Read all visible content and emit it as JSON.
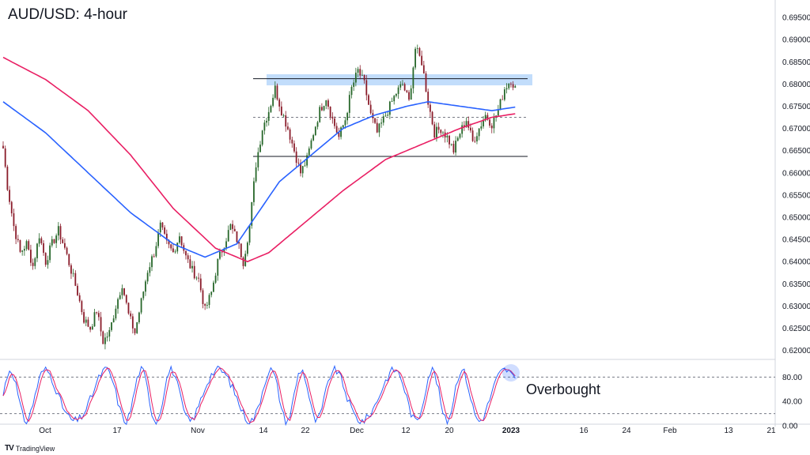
{
  "chart_data": {
    "type": "candlestick",
    "title": "AUD/USD: 4-hour",
    "y_ticks": [
      "0.69500",
      "0.69000",
      "0.68500",
      "0.68000",
      "0.67500",
      "0.67000",
      "0.66500",
      "0.66000",
      "0.65500",
      "0.65000",
      "0.64500",
      "0.64000",
      "0.63500",
      "0.63000",
      "0.62500",
      "0.62000"
    ],
    "ylim": [
      0.6185,
      0.6975
    ],
    "x_ticks": [
      "Oct",
      "17",
      "Nov",
      "14",
      "22",
      "Dec",
      "12",
      "20",
      "2023",
      "16",
      "24",
      "Feb",
      "13",
      "21"
    ],
    "x_ticks_bold": [
      "2023"
    ],
    "price_series_approx": [
      [
        0,
        0.6655
      ],
      [
        2,
        0.657
      ],
      [
        5,
        0.648
      ],
      [
        8,
        0.642
      ],
      [
        11,
        0.644
      ],
      [
        14,
        0.639
      ],
      [
        17,
        0.646
      ],
      [
        20,
        0.64
      ],
      [
        23,
        0.644
      ],
      [
        26,
        0.647
      ],
      [
        29,
        0.643
      ],
      [
        32,
        0.638
      ],
      [
        35,
        0.633
      ],
      [
        38,
        0.627
      ],
      [
        41,
        0.625
      ],
      [
        44,
        0.629
      ],
      [
        47,
        0.622
      ],
      [
        50,
        0.624
      ],
      [
        53,
        0.63
      ],
      [
        56,
        0.635
      ],
      [
        59,
        0.628
      ],
      [
        62,
        0.624
      ],
      [
        65,
        0.631
      ],
      [
        68,
        0.638
      ],
      [
        71,
        0.642
      ],
      [
        74,
        0.648
      ],
      [
        77,
        0.644
      ],
      [
        80,
        0.642
      ],
      [
        83,
        0.646
      ],
      [
        86,
        0.641
      ],
      [
        89,
        0.638
      ],
      [
        92,
        0.636
      ],
      [
        95,
        0.629
      ],
      [
        98,
        0.633
      ],
      [
        101,
        0.64
      ],
      [
        104,
        0.644
      ],
      [
        107,
        0.648
      ],
      [
        110,
        0.645
      ],
      [
        113,
        0.64
      ],
      [
        116,
        0.648
      ],
      [
        119,
        0.662
      ],
      [
        122,
        0.67
      ],
      [
        125,
        0.674
      ],
      [
        128,
        0.679
      ],
      [
        131,
        0.674
      ],
      [
        134,
        0.67
      ],
      [
        137,
        0.665
      ],
      [
        140,
        0.66
      ],
      [
        143,
        0.663
      ],
      [
        146,
        0.669
      ],
      [
        149,
        0.674
      ],
      [
        152,
        0.677
      ],
      [
        155,
        0.672
      ],
      [
        158,
        0.668
      ],
      [
        161,
        0.672
      ],
      [
        164,
        0.679
      ],
      [
        167,
        0.683
      ],
      [
        170,
        0.68
      ],
      [
        173,
        0.673
      ],
      [
        176,
        0.669
      ],
      [
        179,
        0.672
      ],
      [
        182,
        0.675
      ],
      [
        185,
        0.678
      ],
      [
        188,
        0.68
      ],
      [
        191,
        0.676
      ],
      [
        194,
        0.688
      ],
      [
        197,
        0.685
      ],
      [
        200,
        0.676
      ],
      [
        203,
        0.669
      ],
      [
        206,
        0.67
      ],
      [
        209,
        0.668
      ],
      [
        212,
        0.665
      ],
      [
        215,
        0.669
      ],
      [
        218,
        0.672
      ],
      [
        221,
        0.667
      ],
      [
        224,
        0.67
      ],
      [
        227,
        0.673
      ],
      [
        230,
        0.671
      ],
      [
        233,
        0.674
      ],
      [
        236,
        0.679
      ],
      [
        239,
        0.681
      ],
      [
        241,
        0.679
      ]
    ],
    "series": [
      {
        "name": "",
        "color": "#2962ff",
        "desc_type": "moving-average",
        "values_approx": [
          [
            0,
            0.676
          ],
          [
            20,
            0.669
          ],
          [
            40,
            0.66
          ],
          [
            60,
            0.651
          ],
          [
            80,
            0.644
          ],
          [
            95,
            0.641
          ],
          [
            110,
            0.644
          ],
          [
            120,
            0.651
          ],
          [
            130,
            0.658
          ],
          [
            145,
            0.664
          ],
          [
            160,
            0.67
          ],
          [
            175,
            0.673
          ],
          [
            190,
            0.675
          ],
          [
            200,
            0.676
          ],
          [
            215,
            0.675
          ],
          [
            230,
            0.674
          ],
          [
            241,
            0.6748
          ]
        ]
      },
      {
        "name": "",
        "color": "#e91e63",
        "desc_type": "moving-average",
        "values_approx": [
          [
            0,
            0.686
          ],
          [
            20,
            0.681
          ],
          [
            40,
            0.674
          ],
          [
            60,
            0.664
          ],
          [
            80,
            0.652
          ],
          [
            100,
            0.643
          ],
          [
            115,
            0.64
          ],
          [
            125,
            0.642
          ],
          [
            140,
            0.648
          ],
          [
            160,
            0.656
          ],
          [
            180,
            0.663
          ],
          [
            200,
            0.667
          ],
          [
            215,
            0.67
          ],
          [
            230,
            0.6725
          ],
          [
            241,
            0.6733
          ]
        ]
      }
    ],
    "levels": {
      "resistance_zone": [
        0.6797,
        0.6822
      ],
      "resistance_line": 0.6812,
      "mid_line_dashed": 0.6725,
      "support_line": 0.6637
    },
    "oscillator": {
      "type": "stochastic",
      "y_ticks": [
        "80.00",
        "40.00",
        "0.00"
      ],
      "overbought_level": 80,
      "oversold_level": 20,
      "annotation": "Overbought",
      "colors": [
        "#2962ff",
        "#e91e63"
      ]
    }
  },
  "branding": {
    "logo": "TV",
    "name": "TradingView"
  }
}
